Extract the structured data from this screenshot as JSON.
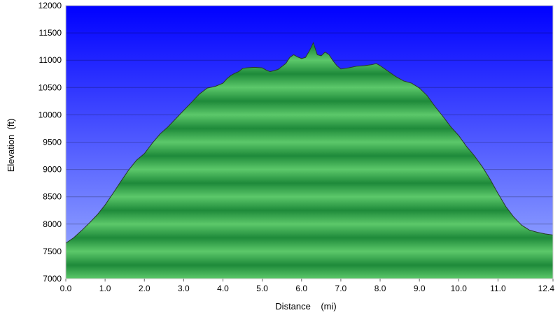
{
  "chart_data": {
    "type": "area",
    "title": "",
    "xlabel": "Distance    (mi)",
    "ylabel": "Elevation  (ft)",
    "xlim": [
      0.0,
      12.4
    ],
    "ylim": [
      7000,
      12000
    ],
    "x_ticks": [
      "0.0",
      "1.0",
      "2.0",
      "3.0",
      "4.0",
      "5.0",
      "6.0",
      "7.0",
      "8.0",
      "9.0",
      "10.0",
      "11.0",
      "12.4"
    ],
    "x_tick_values": [
      0,
      1,
      2,
      3,
      4,
      5,
      6,
      7,
      8,
      9,
      10,
      11,
      12.4
    ],
    "y_ticks": [
      "12000",
      "11500",
      "11000",
      "10500",
      "10000",
      "9500",
      "9000",
      "8500",
      "8000",
      "7500",
      "7000"
    ],
    "y_tick_values": [
      12000,
      11500,
      11000,
      10500,
      10000,
      9500,
      9000,
      8500,
      8000,
      7500,
      7000
    ],
    "grid": true,
    "legend": "none",
    "colors": {
      "sky_top": "#0000ff",
      "sky_bottom": "#a0b4ff",
      "fill_light": "#5cc86a",
      "fill_dark": "#1e8a3a",
      "outline": "#2a3a2a"
    },
    "series": [
      {
        "x": [
          0.0,
          0.2,
          0.4,
          0.6,
          0.8,
          1.0,
          1.2,
          1.4,
          1.6,
          1.8,
          2.0,
          2.2,
          2.4,
          2.6,
          2.8,
          3.0,
          3.2,
          3.4,
          3.6,
          3.8,
          4.0,
          4.1,
          4.2,
          4.3,
          4.4,
          4.5,
          4.6,
          4.8,
          5.0,
          5.1,
          5.2,
          5.4,
          5.6,
          5.7,
          5.8,
          5.9,
          6.0,
          6.1,
          6.2,
          6.3,
          6.4,
          6.5,
          6.6,
          6.7,
          6.8,
          6.9,
          7.0,
          7.2,
          7.4,
          7.6,
          7.8,
          7.9,
          8.0,
          8.2,
          8.4,
          8.6,
          8.8,
          9.0,
          9.2,
          9.4,
          9.6,
          9.8,
          10.0,
          10.2,
          10.4,
          10.6,
          10.8,
          11.0,
          11.2,
          11.4,
          11.6,
          11.8,
          12.0,
          12.2,
          12.4
        ],
        "y": [
          7650,
          7750,
          7880,
          8020,
          8170,
          8350,
          8560,
          8780,
          8990,
          9170,
          9290,
          9480,
          9650,
          9780,
          9930,
          10080,
          10230,
          10380,
          10490,
          10520,
          10580,
          10660,
          10720,
          10760,
          10790,
          10850,
          10860,
          10870,
          10860,
          10820,
          10790,
          10830,
          10940,
          11050,
          11100,
          11060,
          11030,
          11050,
          11170,
          11320,
          11100,
          11080,
          11150,
          11100,
          10990,
          10900,
          10840,
          10860,
          10890,
          10900,
          10920,
          10940,
          10900,
          10800,
          10700,
          10620,
          10580,
          10490,
          10350,
          10150,
          9970,
          9780,
          9620,
          9420,
          9250,
          9050,
          8820,
          8560,
          8320,
          8130,
          7980,
          7890,
          7850,
          7820,
          7800
        ]
      }
    ]
  }
}
